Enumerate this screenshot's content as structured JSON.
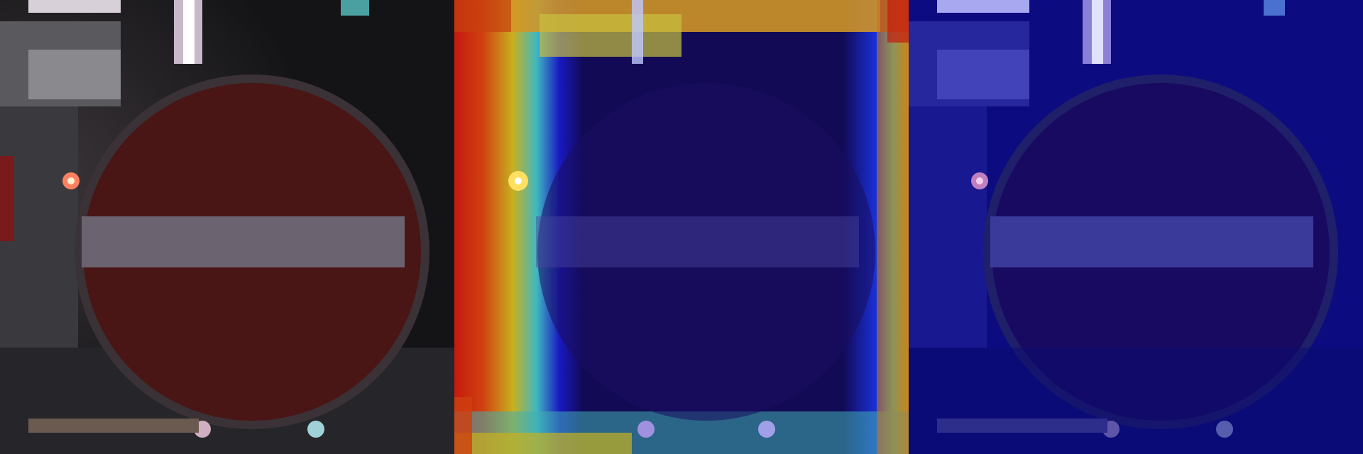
{
  "panels": [
    {
      "id": "original",
      "kind": "original-photo"
    },
    {
      "id": "gradcam-heatmap",
      "kind": "heatmap-overlay"
    },
    {
      "id": "attention-blue",
      "kind": "blue-overlay"
    }
  ],
  "colors": {
    "sign_red": "#4a1515",
    "sign_bar": "#6b6470",
    "sign_rim": "#5a4a52",
    "background_dark": "#1a1a1c",
    "heat_red": "#c41a10",
    "heat_yellow": "#d8c020",
    "heat_cyan": "#40c8c8",
    "heat_blue": "#1010c8",
    "deep_navy": "#120a55",
    "overlay_blue": "#0c0c80"
  }
}
